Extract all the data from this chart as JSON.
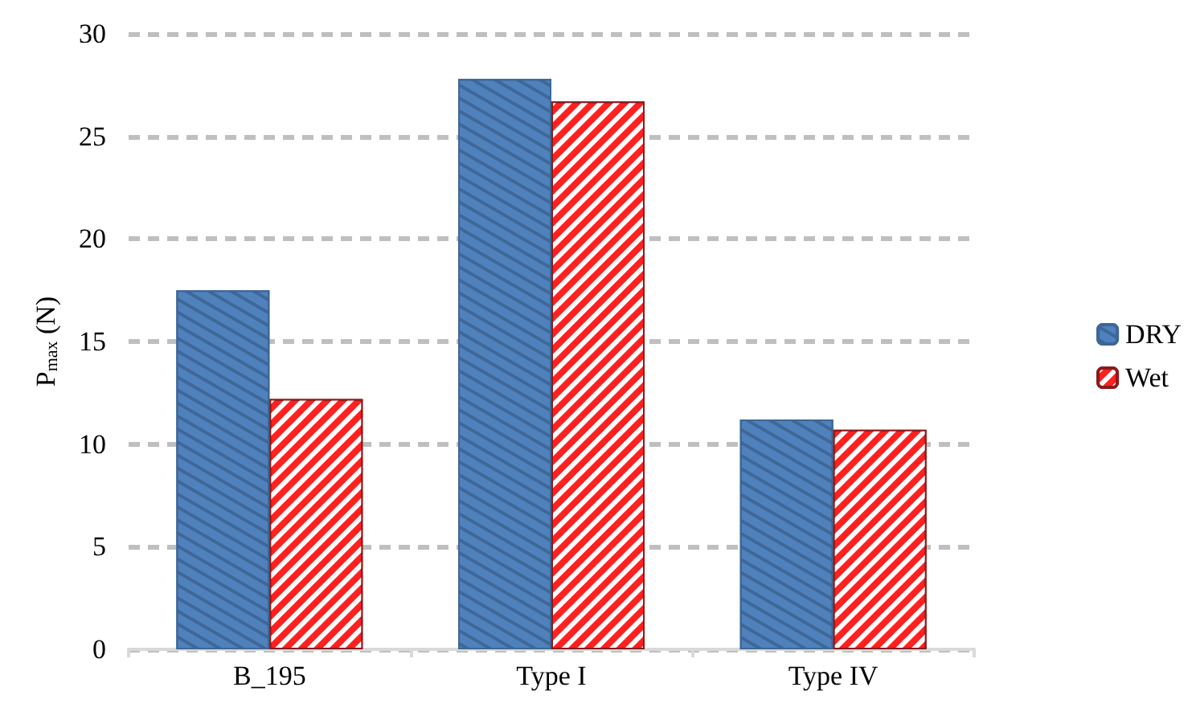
{
  "chart_data": {
    "type": "bar",
    "ylabel": "P$_{max}$ (N)",
    "categories": [
      "B_195",
      "Type I",
      "Type IV"
    ],
    "series": [
      {
        "name": "DRY",
        "color": "#4f81bd",
        "values": [
          17.5,
          27.8,
          11.2
        ]
      },
      {
        "name": "Wet",
        "color": "#ff2020",
        "values": [
          12.2,
          26.7,
          10.7
        ]
      }
    ],
    "ylim": [
      0,
      30
    ],
    "yticks": [
      0,
      5,
      10,
      15,
      20,
      25,
      30
    ],
    "grid": "y",
    "legend": "right"
  }
}
